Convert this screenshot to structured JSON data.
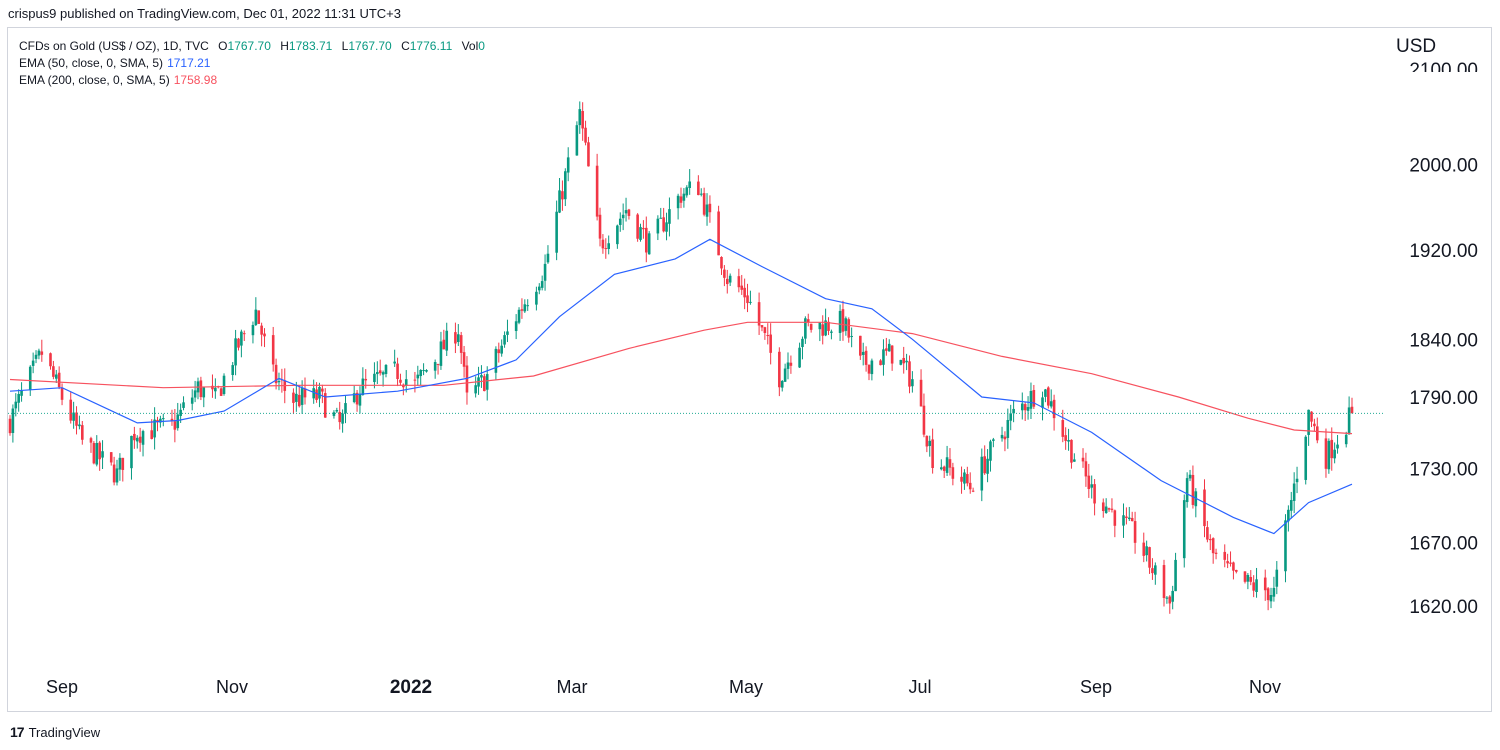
{
  "header": {
    "published": "crispus9 published on TradingView.com, Dec 01, 2022 11:31 UTC+3"
  },
  "legend": {
    "symbol": "CFDs on Gold (US$ / OZ), 1D, TVC",
    "o_label": "O",
    "o_value": "1767.70",
    "h_label": "H",
    "h_value": "1783.71",
    "l_label": "L",
    "l_value": "1767.70",
    "c_label": "C",
    "c_value": "1776.11",
    "vol_label": "Vol",
    "vol_value": "0",
    "ema50_label": "EMA (50, close, 0, SMA, 5)",
    "ema50_value": "1717.21",
    "ema200_label": "EMA (200, close, 0, SMA, 5)",
    "ema200_value": "1758.98"
  },
  "currency": "USD",
  "footer": {
    "brand": "TradingView",
    "brand_mark": "17"
  },
  "colors": {
    "up": "#089981",
    "down": "#f23645",
    "ema50": "#2962ff",
    "ema200": "#f7525f",
    "last_price_line": "#22ab94",
    "axis_text": "#131722",
    "border": "#d1d4dc"
  },
  "chart_data": {
    "type": "candlestick",
    "y_axis": {
      "ticks": [
        "2000.00",
        "1920.00",
        "1840.00",
        "1790.00",
        "1730.00",
        "1670.00",
        "1620.00"
      ],
      "partial_top_tick": "2100.00",
      "scale": "log"
    },
    "x_axis": {
      "ticks": [
        "Sep",
        "Nov",
        "2022",
        "Mar",
        "May",
        "Jul",
        "Sep",
        "Nov"
      ],
      "bold": [
        false,
        false,
        true,
        false,
        false,
        false,
        false,
        false
      ],
      "date_range": [
        "2021-08-23",
        "2022-11-30"
      ]
    },
    "last_close": 1776.11,
    "close_path": [
      [
        "2021-08-23",
        1770
      ],
      [
        "2021-09-03",
        1828
      ],
      [
        "2021-09-09",
        1795
      ],
      [
        "2021-09-17",
        1752
      ],
      [
        "2021-09-29",
        1725
      ],
      [
        "2021-10-05",
        1760
      ],
      [
        "2021-10-18",
        1765
      ],
      [
        "2021-10-27",
        1798
      ],
      [
        "2021-11-02",
        1788
      ],
      [
        "2021-11-09",
        1830
      ],
      [
        "2021-11-16",
        1865
      ],
      [
        "2021-11-22",
        1808
      ],
      [
        "2021-11-29",
        1788
      ],
      [
        "2021-12-08",
        1790
      ],
      [
        "2021-12-15",
        1766
      ],
      [
        "2021-12-22",
        1798
      ],
      [
        "2022-01-04",
        1812
      ],
      [
        "2022-01-10",
        1800
      ],
      [
        "2022-01-25",
        1850
      ],
      [
        "2022-01-28",
        1787
      ],
      [
        "2022-02-04",
        1808
      ],
      [
        "2022-02-14",
        1860
      ],
      [
        "2022-02-24",
        1905
      ],
      [
        "2022-03-08",
        2048
      ],
      [
        "2022-03-15",
        1925
      ],
      [
        "2022-03-24",
        1958
      ],
      [
        "2022-04-01",
        1925
      ],
      [
        "2022-04-12",
        1972
      ],
      [
        "2022-04-18",
        1980
      ],
      [
        "2022-04-28",
        1895
      ],
      [
        "2022-05-05",
        1878
      ],
      [
        "2022-05-16",
        1808
      ],
      [
        "2022-05-25",
        1850
      ],
      [
        "2022-06-07",
        1855
      ],
      [
        "2022-06-13",
        1818
      ],
      [
        "2022-06-24",
        1828
      ],
      [
        "2022-07-01",
        1805
      ],
      [
        "2022-07-08",
        1740
      ],
      [
        "2022-07-21",
        1715
      ],
      [
        "2022-08-05",
        1775
      ],
      [
        "2022-08-15",
        1800
      ],
      [
        "2022-08-24",
        1750
      ],
      [
        "2022-09-01",
        1712
      ],
      [
        "2022-09-16",
        1675
      ],
      [
        "2022-09-28",
        1622
      ],
      [
        "2022-10-04",
        1722
      ],
      [
        "2022-10-13",
        1660
      ],
      [
        "2022-10-21",
        1640
      ],
      [
        "2022-11-03",
        1630
      ],
      [
        "2022-11-07",
        1680
      ],
      [
        "2022-11-15",
        1775
      ],
      [
        "2022-11-21",
        1740
      ],
      [
        "2022-11-30",
        1776
      ]
    ],
    "ema50_path": [
      [
        "2021-08-23",
        1795
      ],
      [
        "2021-09-10",
        1798
      ],
      [
        "2021-10-06",
        1768
      ],
      [
        "2021-10-20",
        1770
      ],
      [
        "2021-11-05",
        1778
      ],
      [
        "2021-11-24",
        1806
      ],
      [
        "2021-12-10",
        1790
      ],
      [
        "2022-01-04",
        1795
      ],
      [
        "2022-01-28",
        1806
      ],
      [
        "2022-02-14",
        1822
      ],
      [
        "2022-03-01",
        1860
      ],
      [
        "2022-03-20",
        1898
      ],
      [
        "2022-04-10",
        1912
      ],
      [
        "2022-04-22",
        1930
      ],
      [
        "2022-05-10",
        1905
      ],
      [
        "2022-06-01",
        1876
      ],
      [
        "2022-06-17",
        1867
      ],
      [
        "2022-07-01",
        1840
      ],
      [
        "2022-07-25",
        1790
      ],
      [
        "2022-08-12",
        1785
      ],
      [
        "2022-09-01",
        1760
      ],
      [
        "2022-09-25",
        1720
      ],
      [
        "2022-10-20",
        1690
      ],
      [
        "2022-11-03",
        1677
      ],
      [
        "2022-11-15",
        1702
      ],
      [
        "2022-11-30",
        1717
      ]
    ],
    "ema200_path": [
      [
        "2021-08-23",
        1805
      ],
      [
        "2021-10-15",
        1798
      ],
      [
        "2021-12-01",
        1800
      ],
      [
        "2022-01-20",
        1800
      ],
      [
        "2022-02-20",
        1808
      ],
      [
        "2022-03-25",
        1832
      ],
      [
        "2022-04-20",
        1848
      ],
      [
        "2022-05-05",
        1855
      ],
      [
        "2022-06-01",
        1855
      ],
      [
        "2022-07-01",
        1845
      ],
      [
        "2022-08-01",
        1825
      ],
      [
        "2022-09-01",
        1810
      ],
      [
        "2022-10-01",
        1790
      ],
      [
        "2022-10-25",
        1772
      ],
      [
        "2022-11-10",
        1762
      ],
      [
        "2022-11-30",
        1759
      ]
    ]
  }
}
